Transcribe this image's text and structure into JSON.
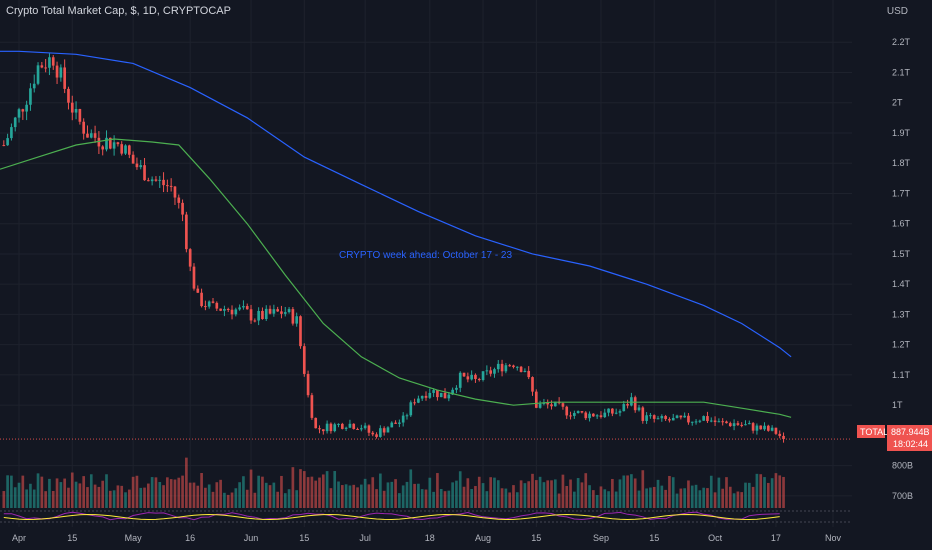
{
  "header": {
    "symbol_title": "Crypto Total Market Cap, $, 1D, CRYPTOCAP",
    "currency": "USD"
  },
  "annotation": {
    "text": "CRYPTO week ahead: October 17  - 23",
    "color": "#2962ff"
  },
  "price_tag": {
    "label": "TOTAL",
    "value": "887.944B",
    "countdown": "18:02:44"
  },
  "colors": {
    "background": "#131722",
    "up": "#26a69a",
    "down": "#ef5350",
    "ma_long": "#2962ff",
    "ma_short": "#4caf50",
    "grid": "#1e222d",
    "axis_text": "#b2b5be"
  },
  "chart_data": {
    "type": "candlestick",
    "title": "Crypto Total Market Cap, $, 1D, CRYPTOCAP",
    "y_unit": "USD",
    "y_tick_labels": [
      "2.2T",
      "2.1T",
      "2T",
      "1.9T",
      "1.8T",
      "1.7T",
      "1.6T",
      "1.5T",
      "1.4T",
      "1.3T",
      "1.2T",
      "1.1T",
      "1T",
      "800B",
      "700B"
    ],
    "y_tick_values": [
      2.2,
      2.1,
      2.0,
      1.9,
      1.8,
      1.7,
      1.6,
      1.5,
      1.4,
      1.3,
      1.2,
      1.1,
      1.0,
      0.8,
      0.7
    ],
    "ylim": [
      0.67,
      2.28
    ],
    "x_tick_labels": [
      "Apr",
      "15",
      "May",
      "16",
      "Jun",
      "15",
      "Jul",
      "18",
      "Aug",
      "15",
      "Sep",
      "15",
      "Oct",
      "17",
      "Nov"
    ],
    "x_tick_days": [
      0,
      14,
      30,
      45,
      61,
      75,
      91,
      108,
      122,
      136,
      153,
      167,
      183,
      199,
      214
    ],
    "xlim_days": [
      -5,
      219
    ],
    "close_path": [
      [
        -4,
        1.86
      ],
      [
        2,
        2.02
      ],
      [
        5,
        2.12
      ],
      [
        9,
        2.15
      ],
      [
        12,
        2.05
      ],
      [
        15,
        1.95
      ],
      [
        18,
        1.9
      ],
      [
        21,
        1.88
      ],
      [
        24,
        1.87
      ],
      [
        27,
        1.86
      ],
      [
        30,
        1.8
      ],
      [
        33,
        1.77
      ],
      [
        36,
        1.74
      ],
      [
        40,
        1.72
      ],
      [
        43,
        1.63
      ],
      [
        45,
        1.45
      ],
      [
        47,
        1.35
      ],
      [
        51,
        1.32
      ],
      [
        55,
        1.32
      ],
      [
        59,
        1.31
      ],
      [
        62,
        1.29
      ],
      [
        66,
        1.3
      ],
      [
        70,
        1.31
      ],
      [
        73,
        1.28
      ],
      [
        76,
        1.03
      ],
      [
        78,
        0.92
      ],
      [
        82,
        0.93
      ],
      [
        86,
        0.94
      ],
      [
        90,
        0.93
      ],
      [
        93,
        0.9
      ],
      [
        97,
        0.93
      ],
      [
        101,
        0.95
      ],
      [
        104,
        1.02
      ],
      [
        108,
        1.05
      ],
      [
        112,
        1.03
      ],
      [
        116,
        1.09
      ],
      [
        120,
        1.08
      ],
      [
        124,
        1.11
      ],
      [
        127,
        1.13
      ],
      [
        130,
        1.14
      ],
      [
        133,
        1.12
      ],
      [
        136,
        1.0
      ],
      [
        140,
        1.0
      ],
      [
        144,
        0.98
      ],
      [
        148,
        0.97
      ],
      [
        151,
        0.97
      ],
      [
        154,
        0.97
      ],
      [
        158,
        0.98
      ],
      [
        161,
        1.02
      ],
      [
        164,
        0.96
      ],
      [
        168,
        0.95
      ],
      [
        172,
        0.95
      ],
      [
        176,
        0.95
      ],
      [
        180,
        0.96
      ],
      [
        184,
        0.94
      ],
      [
        188,
        0.94
      ],
      [
        192,
        0.93
      ],
      [
        196,
        0.92
      ],
      [
        199,
        0.91
      ],
      [
        201,
        0.888
      ]
    ],
    "series": [
      {
        "name": "",
        "color": "#2962ff",
        "points": [
          [
            -5,
            2.17
          ],
          [
            0,
            2.17
          ],
          [
            15,
            2.16
          ],
          [
            30,
            2.13
          ],
          [
            45,
            2.05
          ],
          [
            60,
            1.95
          ],
          [
            75,
            1.82
          ],
          [
            90,
            1.73
          ],
          [
            105,
            1.64
          ],
          [
            120,
            1.56
          ],
          [
            135,
            1.5
          ],
          [
            150,
            1.46
          ],
          [
            165,
            1.4
          ],
          [
            180,
            1.33
          ],
          [
            190,
            1.27
          ],
          [
            200,
            1.19
          ],
          [
            203,
            1.16
          ]
        ]
      },
      {
        "name": "",
        "color": "#4caf50",
        "points": [
          [
            -5,
            1.78
          ],
          [
            5,
            1.82
          ],
          [
            15,
            1.86
          ],
          [
            25,
            1.88
          ],
          [
            35,
            1.87
          ],
          [
            42,
            1.86
          ],
          [
            50,
            1.75
          ],
          [
            60,
            1.6
          ],
          [
            70,
            1.43
          ],
          [
            80,
            1.27
          ],
          [
            90,
            1.16
          ],
          [
            100,
            1.09
          ],
          [
            110,
            1.05
          ],
          [
            120,
            1.02
          ],
          [
            130,
            1.0
          ],
          [
            140,
            1.01
          ],
          [
            150,
            1.01
          ],
          [
            160,
            1.01
          ],
          [
            170,
            1.01
          ],
          [
            180,
            1.01
          ],
          [
            190,
            0.99
          ],
          [
            200,
            0.97
          ],
          [
            203,
            0.96
          ]
        ]
      }
    ],
    "last_value": 0.888
  }
}
